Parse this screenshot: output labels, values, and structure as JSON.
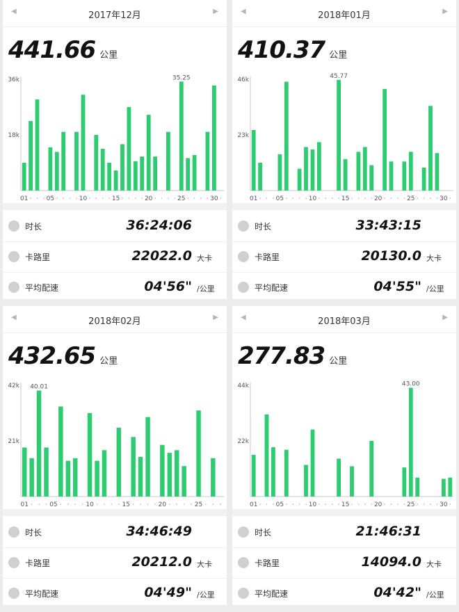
{
  "nav": {
    "prev_glyph": "◀",
    "next_glyph": "▶"
  },
  "colors": {
    "bar": "#2ecc71",
    "axis": "#c8c8c8",
    "label": "#555555"
  },
  "panels": [
    {
      "month": "2017年12月",
      "total_value": "441.66",
      "total_unit": "公里",
      "stats": [
        {
          "icon": "clock-icon",
          "label": "时长",
          "value": "36:24:06",
          "unit": ""
        },
        {
          "icon": "flame-icon",
          "label": "卡路里",
          "value": "22022.0",
          "unit": "大卡"
        },
        {
          "icon": "speed-icon",
          "label": "平均配速",
          "value": "04'56\"",
          "unit": "/公里"
        }
      ]
    },
    {
      "month": "2018年01月",
      "total_value": "410.37",
      "total_unit": "公里",
      "stats": [
        {
          "icon": "clock-icon",
          "label": "时长",
          "value": "33:43:15",
          "unit": ""
        },
        {
          "icon": "flame-icon",
          "label": "卡路里",
          "value": "20130.0",
          "unit": "大卡"
        },
        {
          "icon": "speed-icon",
          "label": "平均配速",
          "value": "04'55\"",
          "unit": "/公里"
        }
      ]
    },
    {
      "month": "2018年02月",
      "total_value": "432.65",
      "total_unit": "公里",
      "stats": [
        {
          "icon": "clock-icon",
          "label": "时长",
          "value": "34:46:49",
          "unit": ""
        },
        {
          "icon": "flame-icon",
          "label": "卡路里",
          "value": "20212.0",
          "unit": "大卡"
        },
        {
          "icon": "speed-icon",
          "label": "平均配速",
          "value": "04'49\"",
          "unit": "/公里"
        }
      ]
    },
    {
      "month": "2018年03月",
      "total_value": "277.83",
      "total_unit": "公里",
      "stats": [
        {
          "icon": "clock-icon",
          "label": "时长",
          "value": "21:46:31",
          "unit": ""
        },
        {
          "icon": "flame-icon",
          "label": "卡路里",
          "value": "14094.0",
          "unit": "大卡"
        },
        {
          "icon": "speed-icon",
          "label": "平均配速",
          "value": "04'42\"",
          "unit": "/公里"
        }
      ]
    }
  ],
  "chart_data": [
    {
      "type": "bar",
      "ymax": 36,
      "y_ticks": [
        {
          "value": 36,
          "label": "36k"
        },
        {
          "value": 18,
          "label": "18k"
        }
      ],
      "x_ticks": [
        "01",
        "05",
        "10",
        "15",
        "20",
        "25",
        "30"
      ],
      "x": [
        1,
        2,
        3,
        4,
        5,
        6,
        7,
        8,
        9,
        10,
        11,
        12,
        13,
        14,
        15,
        16,
        17,
        18,
        19,
        20,
        21,
        22,
        23,
        24,
        25,
        26,
        27,
        28,
        29,
        30,
        31
      ],
      "values": [
        9,
        22.5,
        29.5,
        0,
        14,
        12.5,
        19,
        0,
        19,
        31,
        0,
        18,
        13.5,
        9,
        6.5,
        15,
        27,
        9.5,
        11,
        24.5,
        11,
        0,
        19,
        0,
        35.25,
        10.5,
        11.5,
        0,
        19,
        34,
        0
      ],
      "labels": [
        {
          "x": 25,
          "text": "35.25"
        }
      ],
      "ylim": [
        0,
        36
      ]
    },
    {
      "type": "bar",
      "ymax": 46,
      "y_ticks": [
        {
          "value": 46,
          "label": "46k"
        },
        {
          "value": 23,
          "label": "23k"
        }
      ],
      "x_ticks": [
        "01",
        "05",
        "10",
        "15",
        "20",
        "25",
        "30"
      ],
      "x": [
        1,
        2,
        3,
        4,
        5,
        6,
        7,
        8,
        9,
        10,
        11,
        12,
        13,
        14,
        15,
        16,
        17,
        18,
        19,
        20,
        21,
        22,
        23,
        24,
        25,
        26,
        27,
        28,
        29,
        30,
        31
      ],
      "values": [
        25,
        11.5,
        0,
        0,
        15,
        45,
        0,
        9,
        18,
        17,
        20,
        0,
        0,
        45.77,
        13,
        0,
        16,
        18,
        10.5,
        0,
        42,
        12,
        0,
        12,
        16,
        0,
        9.5,
        35,
        15.5,
        0,
        0
      ],
      "labels": [
        {
          "x": 14,
          "text": "45.77"
        }
      ],
      "ylim": [
        0,
        46
      ]
    },
    {
      "type": "bar",
      "ymax": 42,
      "y_ticks": [
        {
          "value": 42,
          "label": "42k"
        },
        {
          "value": 21,
          "label": "21k"
        }
      ],
      "x_ticks": [
        "01",
        "05",
        "10",
        "15",
        "20",
        "25"
      ],
      "x": [
        1,
        2,
        3,
        4,
        5,
        6,
        7,
        8,
        9,
        10,
        11,
        12,
        13,
        14,
        15,
        16,
        17,
        18,
        19,
        20,
        21,
        22,
        23,
        24,
        25,
        26,
        27,
        28
      ],
      "values": [
        18.5,
        14.5,
        40.01,
        18.5,
        0,
        34,
        13.5,
        14.5,
        0,
        31.5,
        13.5,
        17.5,
        0,
        26,
        0,
        22.5,
        15,
        30,
        0,
        19.5,
        16.5,
        17.5,
        11.5,
        0,
        32.5,
        0,
        14.5,
        0
      ],
      "labels": [
        {
          "x": 3,
          "text": "40.01"
        }
      ],
      "ylim": [
        0,
        42
      ]
    },
    {
      "type": "bar",
      "ymax": 44,
      "y_ticks": [
        {
          "value": 44,
          "label": "44k"
        },
        {
          "value": 22,
          "label": "22k"
        }
      ],
      "x_ticks": [
        "01",
        "05",
        "10",
        "15",
        "20",
        "25",
        "30"
      ],
      "x": [
        1,
        2,
        3,
        4,
        5,
        6,
        7,
        8,
        9,
        10,
        11,
        12,
        13,
        14,
        15,
        16,
        17,
        18,
        19,
        20,
        21,
        22,
        23,
        24,
        25,
        26,
        27,
        28,
        29,
        30,
        31
      ],
      "values": [
        16.5,
        0,
        32.5,
        19.5,
        0,
        18.5,
        0,
        0,
        12.5,
        26.5,
        0,
        0,
        0,
        15,
        0,
        12,
        0,
        0,
        22,
        0,
        0,
        0,
        0,
        11.5,
        43.0,
        7.5,
        0,
        0,
        0,
        7,
        7.5
      ],
      "labels": [
        {
          "x": 25,
          "text": "43.00"
        }
      ],
      "ylim": [
        0,
        44
      ]
    }
  ]
}
